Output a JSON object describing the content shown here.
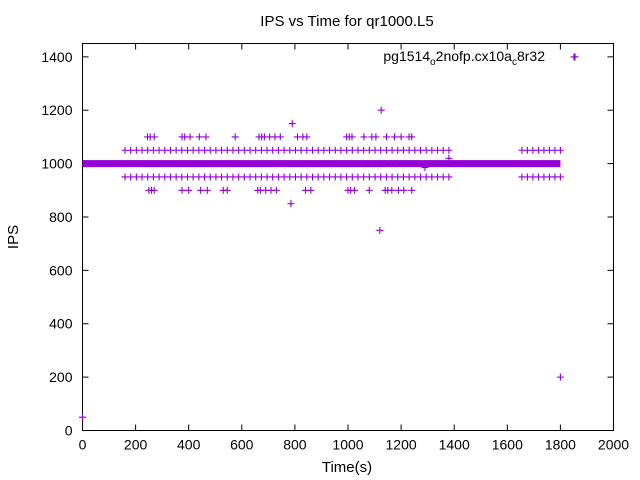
{
  "chart_data": {
    "type": "scatter",
    "title": "IPS vs Time for qr1000.L5",
    "xlabel": "Time(s)",
    "ylabel": "IPS",
    "xlim": [
      0,
      2000
    ],
    "ylim": [
      0,
      1450
    ],
    "x_ticks": [
      0,
      200,
      400,
      600,
      800,
      1000,
      1200,
      1400,
      1600,
      1800,
      2000
    ],
    "y_ticks": [
      0,
      200,
      400,
      600,
      800,
      1000,
      1200,
      1400
    ],
    "grid": false,
    "legend_position": "top-right",
    "marker": "plus",
    "color": "#9400D3",
    "series": [
      {
        "name": "pg1514_o2nofp.cx10a_c8r32",
        "name_parts": [
          {
            "text": "pg1514",
            "sub": false
          },
          {
            "text": "o",
            "sub": true
          },
          {
            "text": "2nofp.cx10a",
            "sub": false
          },
          {
            "text": "c",
            "sub": true
          },
          {
            "text": "8r32",
            "sub": false
          }
        ],
        "dense_segments": [
          {
            "x_from": 0,
            "x_to": 1800,
            "y": 1000
          }
        ],
        "points": [
          [
            0,
            50
          ],
          [
            1855,
            1400
          ],
          [
            1800,
            200
          ],
          [
            1125,
            1200
          ],
          [
            790,
            1150
          ],
          [
            1120,
            750
          ],
          [
            785,
            850
          ],
          [
            1290,
            985
          ],
          [
            1380,
            1020
          ],
          [
            245,
            1100
          ],
          [
            255,
            1100
          ],
          [
            270,
            1100
          ],
          [
            375,
            1100
          ],
          [
            385,
            1100
          ],
          [
            405,
            1100
          ],
          [
            440,
            1100
          ],
          [
            465,
            1100
          ],
          [
            575,
            1100
          ],
          [
            665,
            1100
          ],
          [
            675,
            1100
          ],
          [
            685,
            1100
          ],
          [
            705,
            1100
          ],
          [
            725,
            1100
          ],
          [
            745,
            1100
          ],
          [
            810,
            1100
          ],
          [
            830,
            1100
          ],
          [
            845,
            1100
          ],
          [
            995,
            1100
          ],
          [
            1005,
            1100
          ],
          [
            1015,
            1100
          ],
          [
            1060,
            1100
          ],
          [
            1090,
            1100
          ],
          [
            1105,
            1100
          ],
          [
            1145,
            1100
          ],
          [
            1175,
            1100
          ],
          [
            1200,
            1100
          ],
          [
            1230,
            1100
          ],
          [
            1240,
            1100
          ],
          [
            250,
            900
          ],
          [
            260,
            900
          ],
          [
            270,
            900
          ],
          [
            375,
            900
          ],
          [
            400,
            900
          ],
          [
            445,
            900
          ],
          [
            470,
            900
          ],
          [
            530,
            900
          ],
          [
            545,
            900
          ],
          [
            660,
            900
          ],
          [
            670,
            900
          ],
          [
            690,
            900
          ],
          [
            710,
            900
          ],
          [
            730,
            900
          ],
          [
            840,
            900
          ],
          [
            860,
            900
          ],
          [
            1000,
            900
          ],
          [
            1010,
            900
          ],
          [
            1025,
            900
          ],
          [
            1080,
            900
          ],
          [
            1140,
            900
          ],
          [
            1150,
            900
          ],
          [
            1165,
            900
          ],
          [
            1190,
            900
          ],
          [
            1210,
            900
          ],
          [
            1240,
            900
          ]
        ],
        "band_rows": [
          {
            "y": 1050,
            "x_from": 160,
            "x_to": 1380,
            "count": 58
          },
          {
            "y": 950,
            "x_from": 160,
            "x_to": 1380,
            "count": 58
          },
          {
            "y": 1050,
            "x_from": 1655,
            "x_to": 1800,
            "count": 8
          },
          {
            "y": 950,
            "x_from": 1655,
            "x_to": 1800,
            "count": 8
          }
        ]
      }
    ]
  }
}
